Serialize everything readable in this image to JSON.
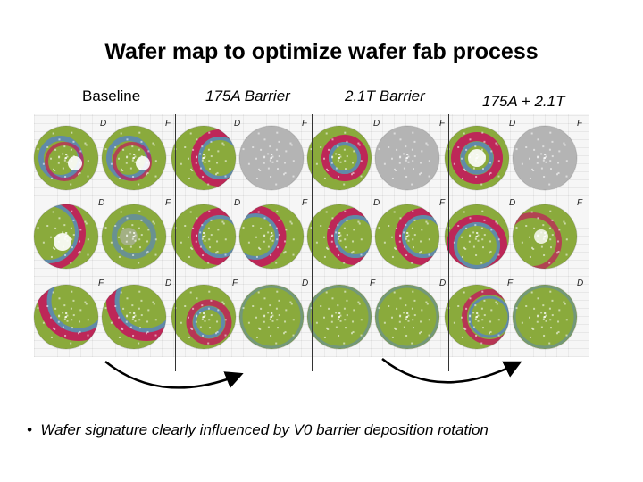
{
  "title": "Wafer map to optimize wafer fab process",
  "columns": [
    {
      "label": "Baseline"
    },
    {
      "label": "175A Barrier"
    },
    {
      "label": "2.1T Barrier"
    },
    {
      "label": "175A + 2.1T"
    }
  ],
  "corner_marks": [
    "D",
    "F"
  ],
  "bullet": "Wafer signature clearly influenced by V0 barrier deposition rotation",
  "colors": {
    "good": "#8aaa3c",
    "gray": "#b4b4b4",
    "fail": "#c2185b",
    "edge": "#5b86b5"
  }
}
